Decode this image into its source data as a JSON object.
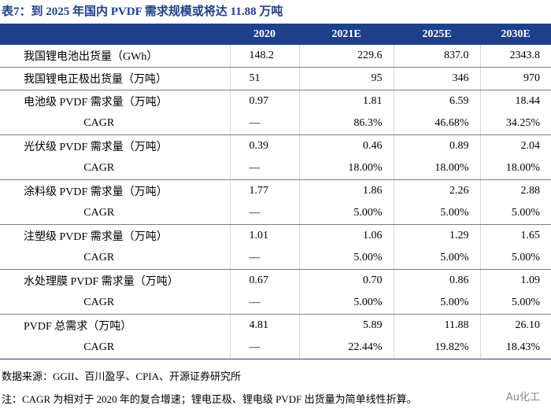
{
  "title": "表7：到 2025 年国内 PVDF 需求规模或将达 11.88 万吨",
  "table": {
    "header": [
      "",
      "2020",
      "2021E",
      "2025E",
      "2030E"
    ],
    "rows": [
      [
        "我国锂电池出货量（GWh）",
        "148.2",
        "229.6",
        "837.0",
        "2343.8"
      ],
      [
        "我国锂电正极出货量（万吨）",
        "51",
        "95",
        "346",
        "970"
      ],
      [
        "电池级 PVDF 需求量（万吨）",
        "0.97",
        "1.81",
        "6.59",
        "18.44"
      ],
      [
        "CAGR",
        "—",
        "86.3%",
        "46.68%",
        "34.25%"
      ],
      [
        "光伏级 PVDF 需求量（万吨）",
        "0.39",
        "0.46",
        "0.89",
        "2.04"
      ],
      [
        "CAGR",
        "—",
        "18.00%",
        "18.00%",
        "18.00%"
      ],
      [
        "涂料级 PVDF 需求量（万吨）",
        "1.77",
        "1.86",
        "2.26",
        "2.88"
      ],
      [
        "CAGR",
        "—",
        "5.00%",
        "5.00%",
        "5.00%"
      ],
      [
        "注塑级 PVDF 需求量（万吨）",
        "1.01",
        "1.06",
        "1.29",
        "1.65"
      ],
      [
        "CAGR",
        "—",
        "5.00%",
        "5.00%",
        "5.00%"
      ],
      [
        "水处理膜 PVDF 需求量（万吨）",
        "0.67",
        "0.70",
        "0.86",
        "1.09"
      ],
      [
        "CAGR",
        "—",
        "5.00%",
        "5.00%",
        "5.00%"
      ],
      [
        "PVDF 总需求（万吨）",
        "4.81",
        "5.89",
        "11.88",
        "26.10"
      ],
      [
        "CAGR",
        "—",
        "22.44%",
        "19.82%",
        "18.43%"
      ]
    ]
  },
  "source": "数据来源：GGII、百川盈孚、CPIA、开源证券研究所",
  "note": "注：CAGR 为相对于 2020 年的复合增速；锂电正极、锂电级 PVDF 出货量为简单线性折算。",
  "watermark": "Au化工"
}
